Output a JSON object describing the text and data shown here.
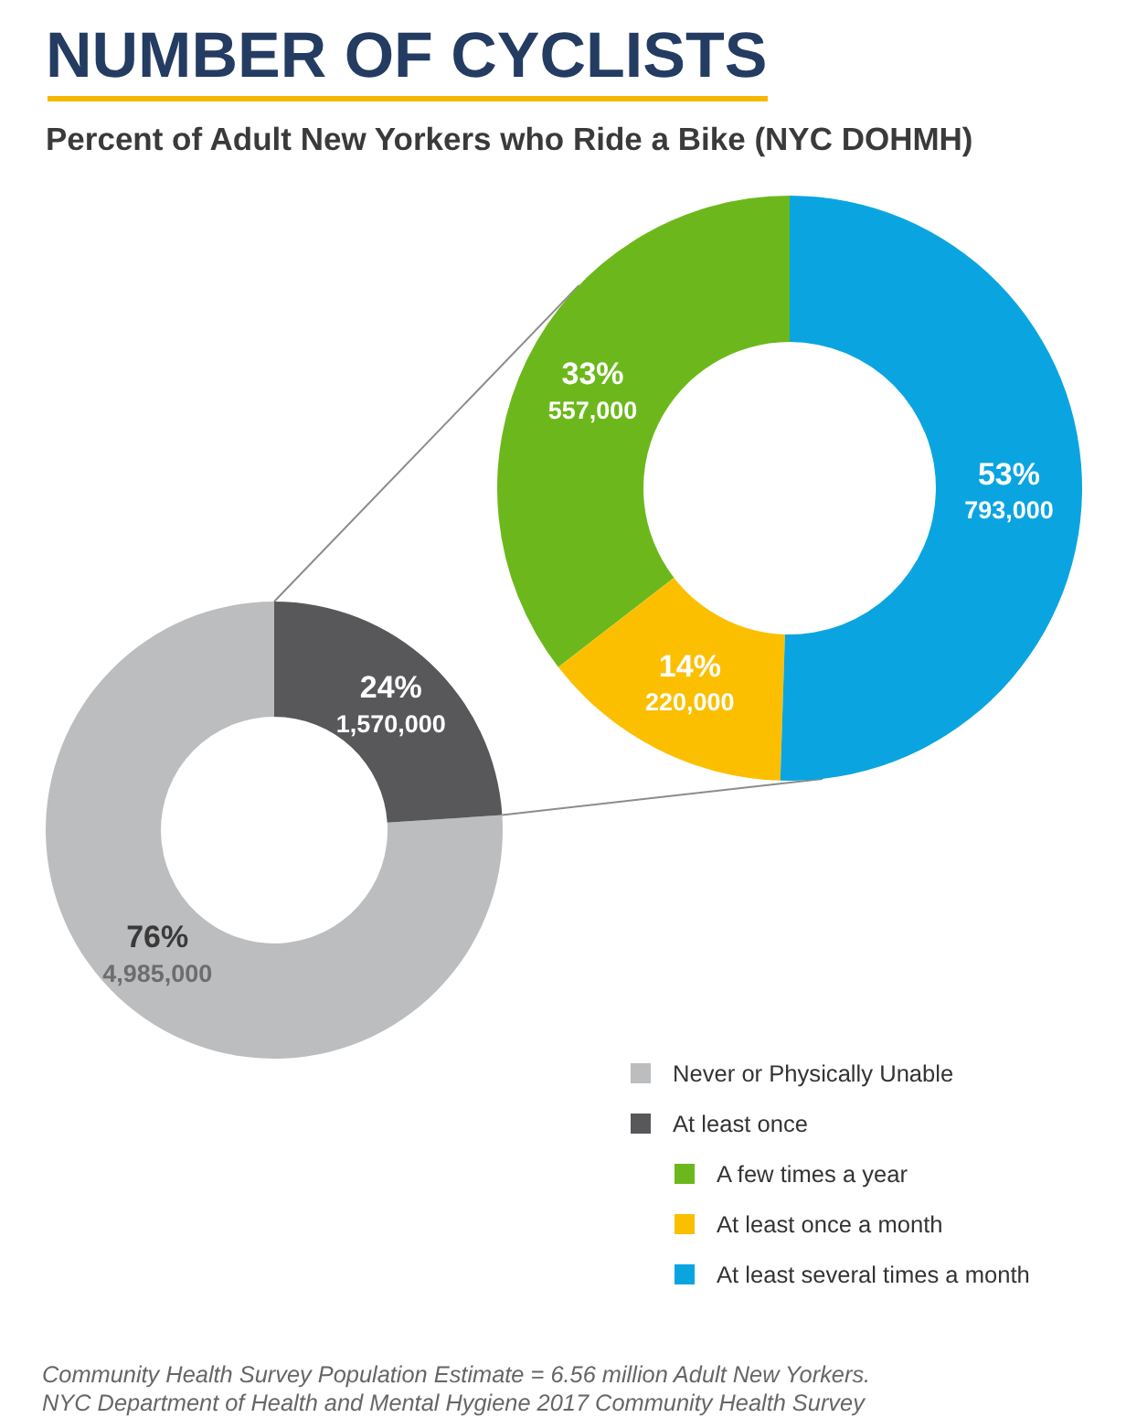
{
  "chart_data": [
    {
      "type": "donut",
      "title": "NUMBER OF CYCLISTS",
      "subtitle": "Percent of Adult New Yorkers who Ride a Bike (NYC DOHMH)",
      "categories": [
        "Never or Physically Unable",
        "At least once"
      ],
      "values": [
        4985000,
        1570000
      ],
      "colors": [
        "#bcbdbf",
        "#58585a"
      ],
      "value_labels": [
        "76%\n4,985,000",
        "24%\n1,570,000"
      ],
      "legend": "bottom right",
      "annotations": [
        "Community Health Survey Population Estimate = 6.56 million Adult New Yorkers.",
        "NYC Department of Health and Mental Hygiene 2017 Community Health Survey"
      ]
    },
    {
      "type": "donut",
      "categories": [
        "A few times a year",
        "At least once a month",
        "At least several times a month"
      ],
      "values": [
        557000,
        220000,
        793000
      ],
      "colors": [
        "#6cb81c",
        "#fbbf00",
        "#0aa5e0"
      ],
      "value_labels": [
        "33%\n557,000",
        "14%\n220,000",
        "53%\n793,000"
      ],
      "legend": "bottom right"
    }
  ]
}
